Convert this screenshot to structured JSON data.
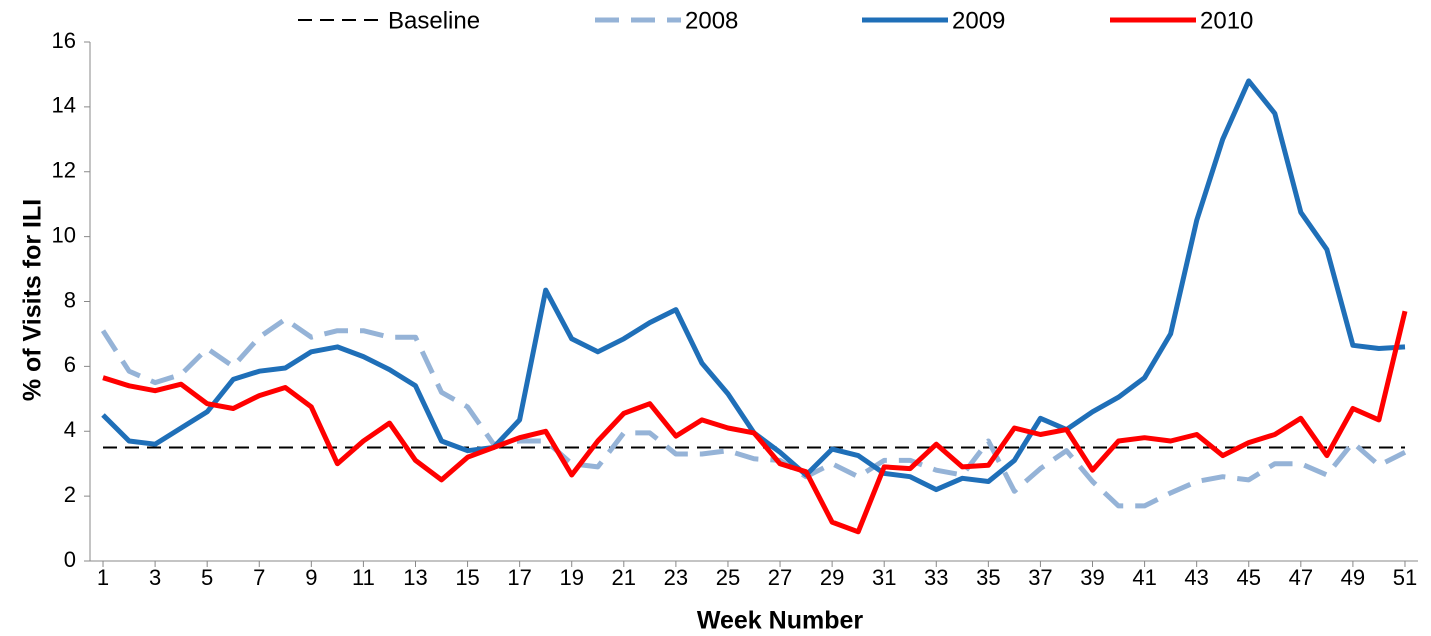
{
  "chart_data": {
    "type": "line",
    "xlabel": "Week Number",
    "ylabel": "% of Visits for ILI",
    "x": [
      1,
      2,
      3,
      4,
      5,
      6,
      7,
      8,
      9,
      10,
      11,
      12,
      13,
      14,
      15,
      16,
      17,
      18,
      19,
      20,
      21,
      22,
      23,
      24,
      25,
      26,
      27,
      28,
      29,
      30,
      31,
      32,
      33,
      34,
      35,
      36,
      37,
      38,
      39,
      40,
      41,
      42,
      43,
      44,
      45,
      46,
      47,
      48,
      49,
      50,
      51
    ],
    "xlim": [
      0.5,
      51.5
    ],
    "xticks": [
      1,
      3,
      5,
      7,
      9,
      11,
      13,
      15,
      17,
      19,
      21,
      23,
      25,
      27,
      29,
      31,
      33,
      35,
      37,
      39,
      41,
      43,
      45,
      47,
      49,
      51
    ],
    "ylim": [
      0,
      16
    ],
    "yticks": [
      0,
      2,
      4,
      6,
      8,
      10,
      12,
      14,
      16
    ],
    "legend": "top",
    "series": [
      {
        "name": "Baseline",
        "color": "#000000",
        "line_style": "dash",
        "values": [
          3.5,
          3.5,
          3.5,
          3.5,
          3.5,
          3.5,
          3.5,
          3.5,
          3.5,
          3.5,
          3.5,
          3.5,
          3.5,
          3.5,
          3.5,
          3.5,
          3.5,
          3.5,
          3.5,
          3.5,
          3.5,
          3.5,
          3.5,
          3.5,
          3.5,
          3.5,
          3.5,
          3.5,
          3.5,
          3.5,
          3.5,
          3.5,
          3.5,
          3.5,
          3.5,
          3.5,
          3.5,
          3.5,
          3.5,
          3.5,
          3.5,
          3.5,
          3.5,
          3.5,
          3.5,
          3.5,
          3.5,
          3.5,
          3.5,
          3.5,
          3.5
        ]
      },
      {
        "name": "2008",
        "color": "#95b3d7",
        "line_style": "long-dash",
        "values": [
          7.1,
          5.85,
          5.5,
          5.75,
          6.55,
          6.0,
          6.9,
          7.45,
          6.9,
          7.1,
          7.1,
          6.9,
          6.9,
          5.2,
          4.75,
          3.6,
          3.7,
          3.7,
          3.0,
          2.9,
          3.95,
          3.95,
          3.3,
          3.3,
          3.4,
          3.15,
          3.1,
          2.6,
          3.0,
          2.6,
          3.1,
          3.1,
          2.8,
          2.65,
          3.7,
          2.15,
          2.85,
          3.4,
          2.45,
          1.7,
          1.7,
          2.1,
          2.45,
          2.6,
          2.5,
          3.0,
          3.0,
          2.65,
          3.65,
          2.95,
          3.35
        ]
      },
      {
        "name": "2009",
        "color": "#1f6fb8",
        "line_style": "solid",
        "values": [
          4.5,
          3.7,
          3.6,
          4.1,
          4.6,
          5.6,
          5.85,
          5.95,
          6.45,
          6.6,
          6.3,
          5.9,
          5.4,
          3.7,
          3.4,
          3.5,
          4.35,
          8.35,
          6.85,
          6.45,
          6.85,
          7.35,
          7.75,
          6.1,
          5.15,
          3.95,
          3.35,
          2.65,
          3.45,
          3.25,
          2.7,
          2.6,
          2.2,
          2.55,
          2.45,
          3.1,
          4.4,
          4.05,
          4.6,
          5.05,
          5.65,
          7.0,
          10.5,
          13.0,
          14.8,
          13.8,
          10.75,
          9.6,
          6.65,
          6.55,
          6.6
        ]
      },
      {
        "name": "2010",
        "color": "#ff0000",
        "line_style": "solid",
        "values": [
          5.65,
          5.4,
          5.25,
          5.45,
          4.85,
          4.7,
          5.1,
          5.35,
          4.75,
          3.0,
          3.7,
          4.25,
          3.1,
          2.5,
          3.2,
          3.5,
          3.8,
          4.0,
          2.65,
          3.7,
          4.55,
          4.85,
          3.85,
          4.35,
          4.1,
          3.95,
          3.0,
          2.75,
          1.2,
          0.9,
          2.9,
          2.85,
          3.6,
          2.9,
          2.95,
          4.1,
          3.9,
          4.05,
          2.8,
          3.7,
          3.8,
          3.7,
          3.9,
          3.25,
          3.65,
          3.9,
          4.4,
          3.25,
          4.7,
          4.35,
          7.7
        ]
      }
    ]
  }
}
